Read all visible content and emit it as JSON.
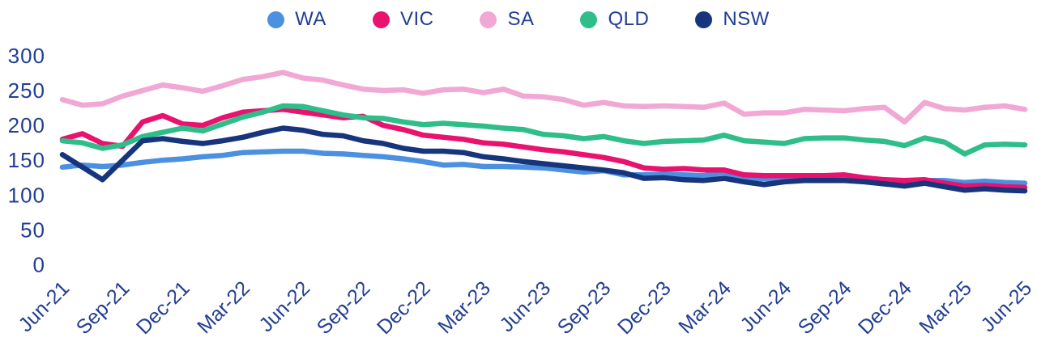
{
  "legend": {
    "items": [
      {
        "label": "WA",
        "color": "#4C90E0"
      },
      {
        "label": "VIC",
        "color": "#E9126E"
      },
      {
        "label": "SA",
        "color": "#F1A8D5"
      },
      {
        "label": "QLD",
        "color": "#2FBE8A"
      },
      {
        "label": "NSW",
        "color": "#17357C"
      }
    ]
  },
  "y_axis": {
    "ticks": [
      0,
      50,
      100,
      150,
      200,
      250,
      300
    ],
    "range": [
      0,
      300
    ]
  },
  "x_axis": {
    "tick_labels": [
      "Jun-21",
      "Sep-21",
      "Dec-21",
      "Mar-22",
      "Jun-22",
      "Sep-22",
      "Dec-22",
      "Mar-23",
      "Jun-23",
      "Sep-23",
      "Dec-23",
      "Mar-24",
      "Jun-24",
      "Sep-24",
      "Dec-24",
      "Mar-25",
      "Jun-25"
    ]
  },
  "colors": {
    "text": "#223E93",
    "background": "#ffffff"
  },
  "chart_data": {
    "type": "line",
    "title": "",
    "xlabel": "",
    "ylabel": "",
    "ylim": [
      0,
      300
    ],
    "grid": false,
    "legend_position": "top-center",
    "frequency": "monthly",
    "x": [
      "Jun-21",
      "Jul-21",
      "Aug-21",
      "Sep-21",
      "Oct-21",
      "Nov-21",
      "Dec-21",
      "Jan-22",
      "Feb-22",
      "Mar-22",
      "Apr-22",
      "May-22",
      "Jun-22",
      "Jul-22",
      "Aug-22",
      "Sep-22",
      "Oct-22",
      "Nov-22",
      "Dec-22",
      "Jan-23",
      "Feb-23",
      "Mar-23",
      "Apr-23",
      "May-23",
      "Jun-23",
      "Jul-23",
      "Aug-23",
      "Sep-23",
      "Oct-23",
      "Nov-23",
      "Dec-23",
      "Jan-24",
      "Feb-24",
      "Mar-24",
      "Apr-24",
      "May-24",
      "Jun-24",
      "Jul-24",
      "Aug-24",
      "Sep-24",
      "Oct-24",
      "Nov-24",
      "Dec-24",
      "Jan-25",
      "Feb-25",
      "Mar-25",
      "Apr-25",
      "May-25",
      "Jun-25"
    ],
    "series": [
      {
        "name": "WA",
        "color": "#4C90E0",
        "values": [
          140,
          143,
          141,
          143,
          147,
          150,
          152,
          155,
          157,
          161,
          162,
          163,
          163,
          160,
          159,
          157,
          155,
          152,
          148,
          143,
          144,
          141,
          141,
          140,
          139,
          136,
          133,
          135,
          129,
          129,
          130,
          129,
          128,
          132,
          125,
          123,
          123,
          125,
          124,
          125,
          122,
          120,
          118,
          121,
          121,
          118,
          120,
          118,
          117
        ]
      },
      {
        "name": "VIC",
        "color": "#E9126E",
        "values": [
          180,
          188,
          174,
          170,
          205,
          214,
          202,
          200,
          211,
          219,
          221,
          223,
          219,
          215,
          211,
          213,
          200,
          194,
          186,
          183,
          180,
          175,
          173,
          169,
          165,
          162,
          158,
          154,
          148,
          139,
          137,
          138,
          136,
          136,
          129,
          128,
          128,
          128,
          128,
          129,
          125,
          122,
          121,
          122,
          117,
          113,
          114,
          112,
          111
        ]
      },
      {
        "name": "SA",
        "color": "#F1A8D5",
        "values": [
          237,
          229,
          231,
          242,
          250,
          258,
          254,
          249,
          257,
          266,
          270,
          276,
          268,
          265,
          258,
          252,
          250,
          251,
          246,
          251,
          252,
          247,
          252,
          242,
          241,
          237,
          229,
          233,
          228,
          227,
          228,
          227,
          226,
          232,
          216,
          218,
          218,
          223,
          222,
          221,
          224,
          226,
          205,
          233,
          224,
          222,
          226,
          228,
          223
        ]
      },
      {
        "name": "QLD",
        "color": "#2FBE8A",
        "values": [
          178,
          175,
          167,
          172,
          184,
          190,
          196,
          192,
          202,
          212,
          219,
          228,
          227,
          221,
          215,
          211,
          210,
          205,
          201,
          203,
          201,
          199,
          196,
          194,
          187,
          185,
          181,
          184,
          178,
          174,
          177,
          178,
          179,
          186,
          178,
          176,
          174,
          181,
          182,
          182,
          179,
          177,
          171,
          182,
          176,
          159,
          172,
          173,
          172
        ]
      },
      {
        "name": "NSW",
        "color": "#17357C",
        "values": [
          158,
          140,
          122,
          150,
          178,
          181,
          177,
          174,
          178,
          183,
          190,
          196,
          193,
          187,
          185,
          178,
          174,
          167,
          163,
          163,
          161,
          155,
          152,
          148,
          145,
          142,
          139,
          136,
          132,
          124,
          125,
          122,
          121,
          124,
          119,
          115,
          119,
          121,
          121,
          121,
          119,
          116,
          113,
          117,
          112,
          107,
          109,
          107,
          106
        ]
      }
    ]
  }
}
